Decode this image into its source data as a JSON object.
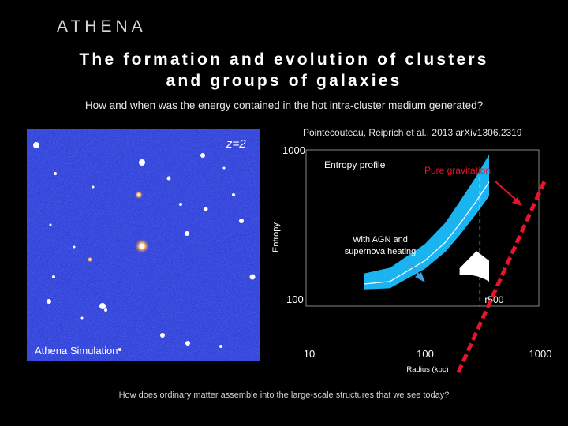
{
  "slide": {
    "brand": "ATHENA",
    "title_line1": "The formation and evolution of clusters",
    "title_line2": "and groups of galaxies",
    "subtitle": "How and when was the energy contained in the hot intra-cluster medium generated?",
    "citation": "Pointecouteau, Reiprich et al., 2013 arXiv1306.2319",
    "bottom_question": "How does ordinary matter assemble into the large-scale structures that we see today?"
  },
  "simulation": {
    "caption": "Athena Simulation",
    "redshift_label": "z=2",
    "background_color": "#1b2fd0"
  },
  "chart_data": {
    "type": "area",
    "title": "Entropy profile",
    "xlabel": "Radius (kpc)",
    "ylabel": "Entropy",
    "x_scale": "log",
    "y_scale": "log",
    "xlim": [
      10,
      1000
    ],
    "ylim": [
      100,
      1000
    ],
    "x_ticks": [
      "10",
      "100",
      "1000"
    ],
    "y_ticks": [
      "100",
      "1000"
    ],
    "reference_line_label": "r500",
    "reference_line_x": 300,
    "annotations": [
      "Pure gravitation",
      "With AGN and supernova heating"
    ],
    "colors": {
      "band": "#1ab4f0",
      "band_lower": "#ffffff",
      "gravity_line": "#e8142a",
      "agn_arrow": "#3aa0e6",
      "gravity_arrow": "#e8142a"
    },
    "series": [
      {
        "x": [
          30,
          50,
          100,
          150,
          200,
          280,
          360
        ],
        "values": [
          125,
          130,
          180,
          240,
          320,
          460,
          620
        ]
      },
      {
        "x": [
          200,
          280,
          360
        ],
        "values": [
          160,
          210,
          180
        ]
      },
      {
        "x": [
          10,
          1000
        ],
        "values": [
          70,
          1000
        ]
      }
    ]
  }
}
